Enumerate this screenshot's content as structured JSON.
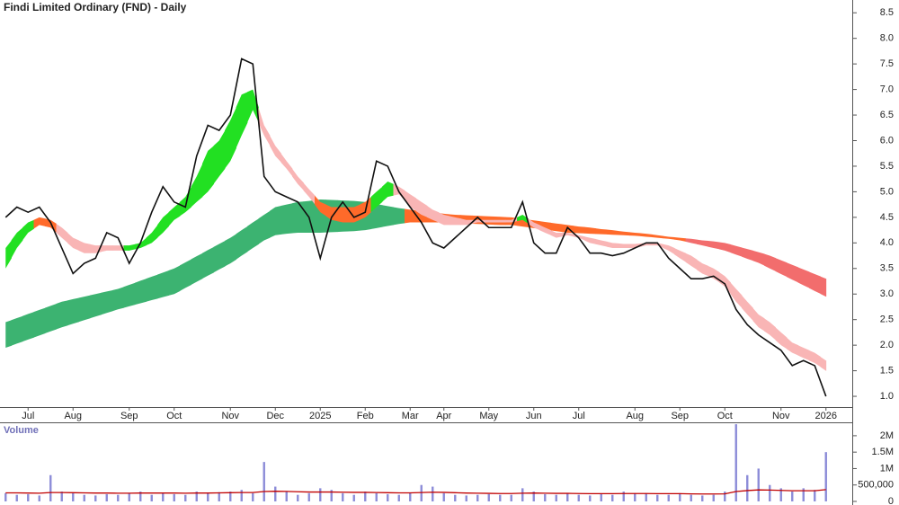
{
  "chart_data": [
    {
      "type": "line",
      "title": "Findi Limited Ordinary (FND) - Daily",
      "categories": [
        null,
        null,
        "Jul",
        null,
        null,
        null,
        "Aug",
        null,
        null,
        null,
        null,
        "Sep",
        null,
        null,
        null,
        "Oct",
        null,
        null,
        null,
        null,
        "Nov",
        null,
        null,
        null,
        "Dec",
        null,
        null,
        null,
        "2025",
        null,
        null,
        null,
        "Feb",
        null,
        null,
        null,
        "Mar",
        null,
        null,
        "Apr",
        null,
        null,
        null,
        "May",
        null,
        null,
        null,
        "Jun",
        null,
        null,
        null,
        "Jul",
        null,
        null,
        null,
        null,
        "Aug",
        null,
        null,
        null,
        "Sep",
        null,
        null,
        null,
        "Oct",
        null,
        null,
        null,
        null,
        "Nov",
        null,
        null,
        null,
        "2026"
      ],
      "series": [
        {
          "color": "#111111",
          "values": [
            4.5,
            4.7,
            4.6,
            4.7,
            4.4,
            3.9,
            3.4,
            3.6,
            3.7,
            4.2,
            4.1,
            3.6,
            4.0,
            4.6,
            5.1,
            4.8,
            4.7,
            5.7,
            6.3,
            6.2,
            6.5,
            7.6,
            7.5,
            5.3,
            5.0,
            4.9,
            4.8,
            4.5,
            3.7,
            4.5,
            4.8,
            4.5,
            4.6,
            5.6,
            5.5,
            5.0,
            4.7,
            4.4,
            4.0,
            3.9,
            4.1,
            4.3,
            4.5,
            4.3,
            4.3,
            4.3,
            4.8,
            4.0,
            3.8,
            3.8,
            4.3,
            4.1,
            3.8,
            3.8,
            3.75,
            3.8,
            3.9,
            4.0,
            4.0,
            3.7,
            3.5,
            3.3,
            3.3,
            3.35,
            3.2,
            2.7,
            2.4,
            2.2,
            2.05,
            1.9,
            1.6,
            1.7,
            1.6,
            1.0
          ]
        }
      ],
      "bands": [
        {
          "upper": [
            2.45,
            2.53,
            2.61,
            2.69,
            2.77,
            2.85,
            2.9,
            2.95,
            3.0,
            3.05,
            3.1,
            3.18,
            3.26,
            3.34,
            3.42,
            3.5,
            3.62,
            3.74,
            3.86,
            3.98,
            4.1,
            4.25,
            4.4,
            4.55,
            4.7,
            4.75,
            4.8,
            4.82,
            4.85,
            4.84,
            4.83,
            4.82,
            4.8,
            4.76,
            4.72,
            4.68,
            4.65,
            4.62,
            4.6,
            4.57,
            4.55,
            4.54,
            4.53,
            4.52,
            4.51,
            4.5,
            4.47,
            4.44,
            4.41,
            4.38,
            4.35,
            4.32,
            4.3,
            4.27,
            4.25,
            4.22,
            4.2,
            4.18,
            4.15,
            4.12,
            4.1,
            4.08,
            4.05,
            4.03,
            4.0,
            3.94,
            3.88,
            3.82,
            3.75,
            3.66,
            3.57,
            3.48,
            3.39,
            3.3
          ],
          "lower": [
            1.95,
            2.03,
            2.11,
            2.19,
            2.27,
            2.35,
            2.42,
            2.49,
            2.56,
            2.63,
            2.7,
            2.76,
            2.82,
            2.88,
            2.94,
            3.0,
            3.12,
            3.24,
            3.36,
            3.48,
            3.6,
            3.75,
            3.9,
            4.05,
            4.15,
            4.18,
            4.2,
            4.2,
            4.2,
            4.21,
            4.22,
            4.23,
            4.25,
            4.29,
            4.33,
            4.37,
            4.4,
            4.4,
            4.4,
            4.4,
            4.4,
            4.38,
            4.37,
            4.36,
            4.35,
            4.35,
            4.32,
            4.29,
            4.26,
            4.23,
            4.2,
            4.19,
            4.18,
            4.17,
            4.16,
            4.15,
            4.14,
            4.12,
            4.1,
            4.08,
            4.05,
            4.0,
            3.95,
            3.9,
            3.85,
            3.77,
            3.69,
            3.61,
            3.5,
            3.39,
            3.28,
            3.17,
            3.06,
            2.95
          ],
          "colors": [
            "#3cb371",
            "#3cb371",
            "#3cb371",
            "#3cb371",
            "#3cb371",
            "#3cb371",
            "#3cb371",
            "#3cb371",
            "#3cb371",
            "#3cb371",
            "#3cb371",
            "#3cb371",
            "#3cb371",
            "#3cb371",
            "#3cb371",
            "#3cb371",
            "#3cb371",
            "#3cb371",
            "#3cb371",
            "#3cb371",
            "#3cb371",
            "#3cb371",
            "#3cb371",
            "#3cb371",
            "#3cb371",
            "#3cb371",
            "#3cb371",
            "#3cb371",
            "#3cb371",
            "#3cb371",
            "#3cb371",
            "#3cb371",
            "#3cb371",
            "#3cb371",
            "#3cb371",
            "#3cb371",
            "#ff6a2a",
            "#ff6a2a",
            "#ff6a2a",
            "#ff6a2a",
            "#ff6a2a",
            "#ff6a2a",
            "#ff6a2a",
            "#ff6a2a",
            "#ff6a2a",
            "#ff6a2a",
            "#ff6a2a",
            "#ff6a2a",
            "#ff6a2a",
            "#ff6a2a",
            "#ff6a2a",
            "#ff6a2a",
            "#ff6a2a",
            "#ff6a2a",
            "#ff6a2a",
            "#ff6a2a",
            "#ff6a2a",
            "#ff6a2a",
            "#ff6a2a",
            "#ff6a2a",
            "#ff6a2a",
            "#f26d6d",
            "#f26d6d",
            "#f26d6d",
            "#f26d6d",
            "#f26d6d",
            "#f26d6d",
            "#f26d6d",
            "#f26d6d",
            "#f26d6d",
            "#f26d6d",
            "#f26d6d",
            "#f26d6d",
            "#f26d6d"
          ]
        },
        {
          "upper": [
            3.9,
            4.2,
            4.4,
            4.5,
            4.45,
            4.3,
            4.1,
            4.0,
            3.95,
            3.95,
            3.95,
            3.95,
            4.0,
            4.2,
            4.5,
            4.7,
            4.9,
            5.3,
            5.8,
            6.0,
            6.4,
            6.9,
            7.0,
            6.3,
            5.9,
            5.6,
            5.3,
            5.05,
            4.8,
            4.7,
            4.7,
            4.7,
            4.8,
            5.0,
            5.2,
            5.1,
            4.95,
            4.8,
            4.65,
            4.55,
            4.5,
            4.45,
            4.45,
            4.45,
            4.45,
            4.45,
            4.55,
            4.4,
            4.3,
            4.2,
            4.2,
            4.15,
            4.1,
            4.05,
            4.0,
            3.98,
            3.98,
            4.0,
            4.0,
            3.95,
            3.85,
            3.75,
            3.6,
            3.5,
            3.35,
            3.1,
            2.85,
            2.6,
            2.45,
            2.25,
            2.05,
            1.95,
            1.85,
            1.7
          ],
          "lower": [
            3.5,
            3.9,
            4.2,
            4.35,
            4.3,
            4.1,
            3.9,
            3.8,
            3.8,
            3.85,
            3.85,
            3.85,
            3.9,
            4.0,
            4.2,
            4.45,
            4.6,
            4.8,
            5.0,
            5.3,
            5.6,
            6.1,
            6.6,
            6.1,
            5.7,
            5.45,
            5.15,
            4.9,
            4.6,
            4.45,
            4.4,
            4.4,
            4.5,
            4.7,
            4.9,
            4.95,
            4.7,
            4.55,
            4.45,
            4.35,
            4.35,
            4.35,
            4.4,
            4.4,
            4.4,
            4.4,
            4.45,
            4.3,
            4.2,
            4.1,
            4.15,
            4.1,
            4.0,
            3.95,
            3.9,
            3.9,
            3.9,
            3.95,
            3.95,
            3.85,
            3.7,
            3.55,
            3.4,
            3.3,
            3.15,
            2.85,
            2.6,
            2.35,
            2.2,
            2.0,
            1.85,
            1.75,
            1.65,
            1.5
          ],
          "colors": [
            "#22e022",
            "#22e022",
            "#22e022",
            "#ff6a2a",
            "#ff6a2a",
            "#f9b5b5",
            "#f9b5b5",
            "#f9b5b5",
            "#f9b5b5",
            "#f9b5b5",
            "#f9b5b5",
            "#22e022",
            "#22e022",
            "#22e022",
            "#22e022",
            "#22e022",
            "#22e022",
            "#22e022",
            "#22e022",
            "#22e022",
            "#22e022",
            "#22e022",
            "#22e022",
            "#f9b5b5",
            "#f9b5b5",
            "#f9b5b5",
            "#f9b5b5",
            "#f9b5b5",
            "#ff6a2a",
            "#ff6a2a",
            "#ff6a2a",
            "#ff6a2a",
            "#ff6a2a",
            "#22e022",
            "#22e022",
            "#f9b5b5",
            "#f9b5b5",
            "#f9b5b5",
            "#f9b5b5",
            "#f9b5b5",
            "#f9b5b5",
            "#f9b5b5",
            "#f9b5b5",
            "#f9b5b5",
            "#f9b5b5",
            "#f9b5b5",
            "#22e022",
            "#f9b5b5",
            "#f9b5b5",
            "#f9b5b5",
            "#f9b5b5",
            "#f9b5b5",
            "#f9b5b5",
            "#f9b5b5",
            "#f9b5b5",
            "#f9b5b5",
            "#f9b5b5",
            "#f9b5b5",
            "#f9b5b5",
            "#f9b5b5",
            "#f9b5b5",
            "#f9b5b5",
            "#f9b5b5",
            "#f9b5b5",
            "#f9b5b5",
            "#f9b5b5",
            "#f9b5b5",
            "#f9b5b5",
            "#f9b5b5",
            "#f9b5b5",
            "#f9b5b5",
            "#f9b5b5",
            "#f9b5b5",
            "#f9b5b5"
          ]
        }
      ],
      "ylim": [
        0.79,
        8.75
      ],
      "yticks": [
        {
          "value": 1,
          "label": "1.0"
        },
        1.5,
        {
          "value": 2,
          "label": "2.0"
        },
        2.5,
        {
          "value": 3,
          "label": "3.0"
        },
        3.5,
        {
          "value": 4,
          "label": "4.0"
        },
        4.5,
        {
          "value": 5,
          "label": "5.0"
        },
        5.5,
        {
          "value": 6,
          "label": "6.0"
        },
        6.5,
        {
          "value": 7,
          "label": "7.0"
        },
        7.5,
        {
          "value": 8,
          "label": "8.0"
        },
        8.5
      ]
    },
    {
      "type": "bar",
      "title": "Volume",
      "color": "#8c8cd8",
      "values": [
        250000,
        200000,
        220000,
        180000,
        800000,
        300000,
        250000,
        200000,
        180000,
        220000,
        200000,
        250000,
        300000,
        200000,
        250000,
        220000,
        200000,
        300000,
        250000,
        280000,
        300000,
        350000,
        250000,
        1200000,
        450000,
        300000,
        200000,
        250000,
        400000,
        350000,
        250000,
        200000,
        300000,
        250000,
        220000,
        200000,
        250000,
        500000,
        450000,
        250000,
        200000,
        180000,
        200000,
        220000,
        200000,
        200000,
        400000,
        300000,
        220000,
        200000,
        250000,
        200000,
        180000,
        220000,
        200000,
        300000,
        250000,
        250000,
        200000,
        200000,
        250000,
        200000,
        180000,
        200000,
        300000,
        2350000,
        800000,
        1000000,
        500000,
        400000,
        300000,
        400000,
        350000,
        1500000
      ],
      "average": {
        "color": "#c00000",
        "values": [
          260000,
          260000,
          255000,
          250000,
          270000,
          270000,
          265000,
          260000,
          255000,
          255000,
          250000,
          250000,
          255000,
          255000,
          255000,
          255000,
          250000,
          255000,
          255000,
          260000,
          265000,
          270000,
          270000,
          300000,
          310000,
          305000,
          295000,
          285000,
          285000,
          285000,
          280000,
          275000,
          275000,
          270000,
          265000,
          260000,
          260000,
          270000,
          280000,
          275000,
          265000,
          255000,
          250000,
          245000,
          240000,
          240000,
          250000,
          255000,
          250000,
          245000,
          245000,
          240000,
          235000,
          235000,
          235000,
          240000,
          240000,
          240000,
          235000,
          235000,
          235000,
          230000,
          225000,
          225000,
          230000,
          300000,
          330000,
          350000,
          345000,
          335000,
          325000,
          325000,
          325000,
          360000
        ]
      },
      "ylim": [
        0,
        2380000
      ],
      "yticks": [
        0,
        {
          "value": 500000,
          "label": "500,000"
        },
        {
          "value": 1000000,
          "label": "1M"
        },
        {
          "value": 1500000,
          "label": "1.5M"
        },
        {
          "value": 2000000,
          "label": "2M"
        }
      ]
    }
  ]
}
